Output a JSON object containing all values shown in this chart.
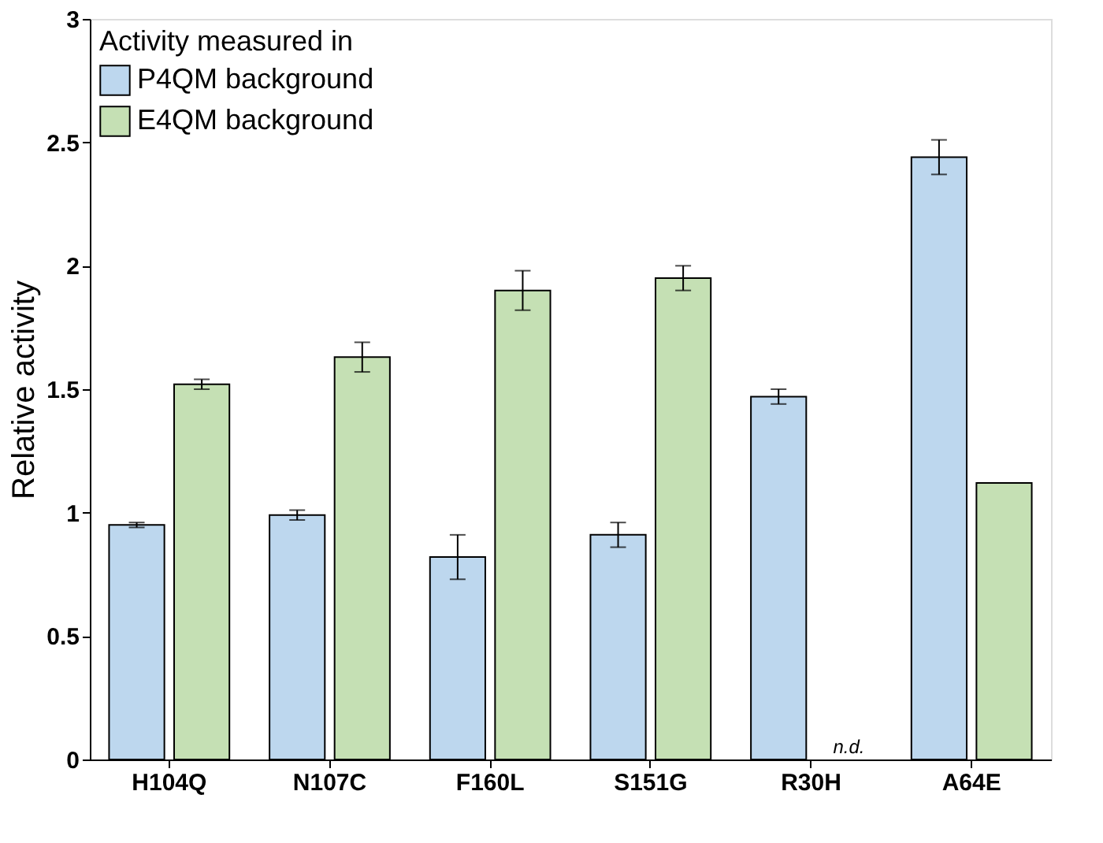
{
  "chart_data": {
    "type": "bar",
    "ylabel": "Relative activity",
    "legend_title": "Activity measured in",
    "legend": "top left",
    "grid": false,
    "categories": [
      "H104Q",
      "N107C",
      "F160L",
      "S151G",
      "R30H",
      "A64E"
    ],
    "series": [
      {
        "name": "P4QM background",
        "color": "#bdd7ee",
        "values": [
          0.95,
          0.99,
          0.82,
          0.91,
          1.47,
          2.44
        ],
        "errors": [
          0.01,
          0.02,
          0.09,
          0.05,
          0.03,
          0.07
        ]
      },
      {
        "name": "E4QM background",
        "color": "#c5e0b4",
        "values": [
          1.52,
          1.63,
          1.9,
          1.95,
          null,
          1.12
        ],
        "errors": [
          0.02,
          0.06,
          0.08,
          0.05,
          null,
          null
        ]
      }
    ],
    "ylim": [
      0,
      3
    ],
    "yticks": [
      0,
      0.5,
      1,
      1.5,
      2,
      2.5,
      3
    ],
    "annotations": [
      {
        "text": "n.d.",
        "x": "R30H",
        "y": 0
      }
    ]
  }
}
